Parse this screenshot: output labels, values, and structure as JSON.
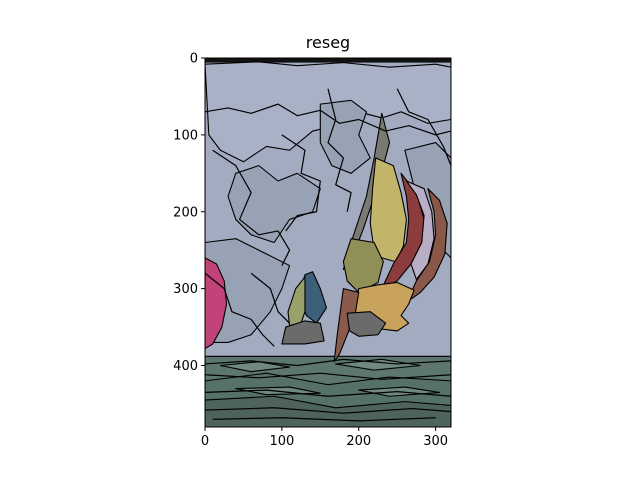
{
  "chart_data": {
    "type": "image",
    "title": "reseg",
    "xlabel": "",
    "ylabel": "",
    "xlim": [
      0,
      320
    ],
    "ylim": [
      480,
      0
    ],
    "xticks": [
      0,
      100,
      200,
      300
    ],
    "yticks": [
      0,
      100,
      200,
      300,
      400
    ],
    "image_content": "segmented sailboats with colourful spinnakers on water",
    "palette": {
      "sky": "#a2abc0",
      "sky_light": "#a9b1c6",
      "sky_mid": "#97a3b4",
      "water_top": "#5e7670",
      "water_dark": "#4e625e",
      "water_mid": "#56706a",
      "water_band": "#6f8882",
      "hull_grey": "#6b6b6b",
      "mast_grey": "#7a7a72",
      "sail_yellow": "#c2b56a",
      "sail_olive": "#8f8f57",
      "sail_red": "#8c3c3c",
      "sail_brown": "#8a5848",
      "sail_lavender": "#b9aec6",
      "sail_pink": "#c2437a",
      "sail_blue": "#3e5f7a",
      "sail_olive2": "#9aa06a",
      "sail_green": "#7d8a5a",
      "sail_tan": "#c9a35c",
      "sail_rust": "#8a5a4a"
    }
  }
}
